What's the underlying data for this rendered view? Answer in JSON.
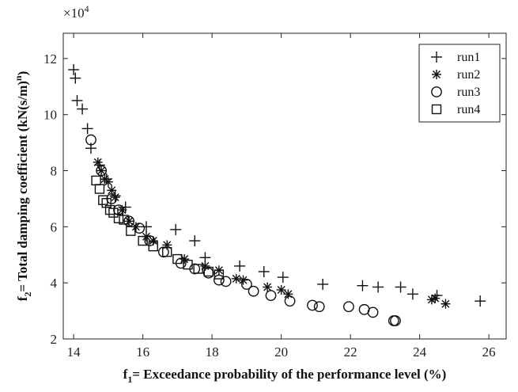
{
  "chart_data": {
    "type": "scatter",
    "xlabel": {
      "main": "f",
      "sub": "1",
      "rest": "= Exceedance probability of the performance level (%)"
    },
    "ylabel": {
      "main": "f",
      "sub": "2",
      "rest": "= Total damping coefficient (kN(s/m)",
      "sup": "n",
      "close": ")"
    },
    "y_multiplier": {
      "base": "×10",
      "exp": "4"
    },
    "xlim": [
      13.7,
      26.5
    ],
    "ylim": [
      2,
      12.9
    ],
    "xticks": [
      14,
      16,
      18,
      20,
      22,
      24,
      26
    ],
    "yticks": [
      2,
      4,
      6,
      8,
      10,
      12
    ],
    "grid": false,
    "legend_position": "top-right",
    "series": [
      {
        "name": "run1",
        "marker": "plus",
        "points": [
          [
            14.0,
            11.6
          ],
          [
            14.05,
            11.3
          ],
          [
            14.1,
            10.5
          ],
          [
            14.25,
            10.2
          ],
          [
            14.4,
            9.5
          ],
          [
            14.5,
            8.8
          ],
          [
            14.75,
            8.2
          ],
          [
            14.95,
            7.7
          ],
          [
            15.2,
            7.1
          ],
          [
            15.5,
            6.7
          ],
          [
            16.1,
            6.0
          ],
          [
            16.95,
            5.9
          ],
          [
            17.5,
            5.5
          ],
          [
            17.8,
            4.9
          ],
          [
            18.8,
            4.6
          ],
          [
            19.5,
            4.4
          ],
          [
            20.05,
            4.2
          ],
          [
            21.2,
            3.95
          ],
          [
            22.35,
            3.9
          ],
          [
            22.8,
            3.85
          ],
          [
            23.45,
            3.85
          ],
          [
            23.8,
            3.6
          ],
          [
            24.5,
            3.55
          ],
          [
            25.75,
            3.35
          ]
        ]
      },
      {
        "name": "run2",
        "marker": "star",
        "points": [
          [
            14.7,
            8.3
          ],
          [
            14.8,
            8.0
          ],
          [
            14.9,
            7.7
          ],
          [
            15.0,
            7.6
          ],
          [
            15.1,
            7.3
          ],
          [
            15.2,
            7.05
          ],
          [
            15.4,
            6.6
          ],
          [
            15.6,
            6.2
          ],
          [
            15.8,
            6.0
          ],
          [
            16.1,
            5.65
          ],
          [
            16.3,
            5.5
          ],
          [
            16.7,
            5.35
          ],
          [
            17.2,
            4.85
          ],
          [
            17.8,
            4.6
          ],
          [
            18.2,
            4.45
          ],
          [
            18.7,
            4.15
          ],
          [
            18.9,
            4.1
          ],
          [
            19.6,
            3.85
          ],
          [
            20.0,
            3.75
          ],
          [
            20.2,
            3.6
          ],
          [
            24.35,
            3.4
          ],
          [
            24.45,
            3.45
          ],
          [
            24.75,
            3.25
          ]
        ]
      },
      {
        "name": "run3",
        "marker": "circle",
        "points": [
          [
            14.5,
            9.1
          ],
          [
            14.8,
            8.0
          ],
          [
            15.1,
            7.0
          ],
          [
            15.3,
            6.6
          ],
          [
            15.6,
            6.2
          ],
          [
            15.9,
            5.95
          ],
          [
            16.2,
            5.5
          ],
          [
            16.6,
            5.1
          ],
          [
            17.1,
            4.7
          ],
          [
            17.5,
            4.5
          ],
          [
            17.9,
            4.35
          ],
          [
            18.2,
            4.1
          ],
          [
            18.4,
            4.05
          ],
          [
            19.0,
            3.95
          ],
          [
            19.2,
            3.7
          ],
          [
            19.7,
            3.55
          ],
          [
            20.25,
            3.35
          ],
          [
            20.9,
            3.2
          ],
          [
            21.1,
            3.15
          ],
          [
            21.95,
            3.15
          ],
          [
            22.4,
            3.05
          ],
          [
            22.65,
            2.95
          ],
          [
            23.25,
            2.65
          ],
          [
            23.3,
            2.65
          ]
        ]
      },
      {
        "name": "run4",
        "marker": "square",
        "points": [
          [
            14.65,
            7.65
          ],
          [
            14.75,
            7.35
          ],
          [
            14.85,
            6.95
          ],
          [
            14.95,
            6.85
          ],
          [
            15.05,
            6.6
          ],
          [
            15.15,
            6.5
          ],
          [
            15.3,
            6.3
          ],
          [
            15.45,
            6.25
          ],
          [
            15.65,
            5.85
          ],
          [
            16.0,
            5.5
          ],
          [
            16.3,
            5.3
          ],
          [
            16.7,
            5.1
          ],
          [
            17.0,
            4.85
          ],
          [
            17.3,
            4.65
          ],
          [
            17.6,
            4.5
          ],
          [
            17.9,
            4.4
          ],
          [
            18.2,
            4.3
          ]
        ]
      }
    ]
  }
}
